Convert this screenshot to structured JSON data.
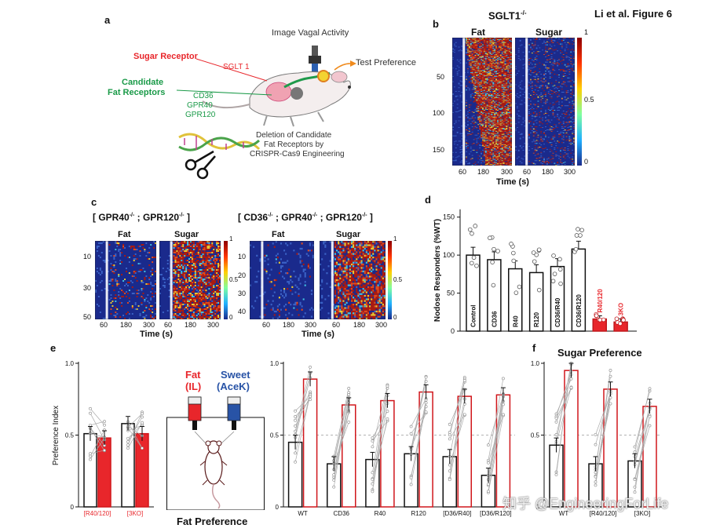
{
  "figure": {
    "title": "Li et al. Figure 6",
    "watermark": "知乎 @EngineeringForLife"
  },
  "panel_a": {
    "label": "a",
    "image_vagal": "Image Vagal Activity",
    "test_pref": "Test Preference",
    "sugar_receptor": "Sugar Receptor",
    "sglt1": "SGLT 1",
    "candidate": "Candidate",
    "fat_receptors": "Fat Receptors",
    "cd36": "CD36",
    "gpr40": "GPR40",
    "gpr120": "GPR120",
    "deletion_1": "Deletion of Candidate",
    "deletion_2": "Fat Receptors by",
    "deletion_3": "CRISPR-Cas9 Engineering"
  },
  "panel_b": {
    "label": "b",
    "title": "SGLT1",
    "title_sup": "-/-",
    "fat": "Fat",
    "sugar": "Sugar",
    "yticks": [
      "50",
      "100",
      "150"
    ],
    "xticks": [
      "60",
      "180",
      "300"
    ],
    "xlabel": "Time (s)",
    "cbar": [
      "1",
      "0.5",
      "0"
    ]
  },
  "panel_c": {
    "label": "c",
    "left_title": "[ GPR40",
    "left_mid": " ; GPR120",
    "left_end": " ]",
    "right_title": "[ CD36",
    "right_mid1": " ; GPR40",
    "right_mid2": " ; GPR120",
    "right_end": " ]",
    "sup": "-/-",
    "fat": "Fat",
    "sugar": "Sugar",
    "left_yticks": [
      "10",
      "30",
      "50"
    ],
    "right_yticks": [
      "10",
      "20",
      "30",
      "40"
    ],
    "xticks": [
      "60",
      "180",
      "300"
    ],
    "xlabel": "Time (s)",
    "cbar": [
      "1",
      "0.5",
      "0"
    ]
  },
  "panel_d": {
    "label": "d",
    "ylabel": "Nodose Responders (%WT)",
    "yticks": [
      "0",
      "50",
      "100",
      "150"
    ],
    "chart_data": {
      "type": "bar",
      "categories": [
        "Control",
        "CD36",
        "R40",
        "R120",
        "CD36/R40",
        "CD36/R120",
        "R40/120",
        "3KO"
      ],
      "values": [
        100,
        94,
        82,
        77,
        85,
        108,
        16,
        12
      ],
      "ylim": [
        0,
        160
      ],
      "colors": [
        "#ffffff",
        "#ffffff",
        "#ffffff",
        "#ffffff",
        "#ffffff",
        "#ffffff",
        "#e8262b",
        "#e8262b"
      ]
    }
  },
  "panel_e": {
    "label": "e",
    "ylabel": "Preference Index",
    "yticks": [
      "0",
      "0.5",
      "1.0"
    ],
    "left_categories": [
      "[R40/120]",
      "[3KO]"
    ],
    "fat": "Fat",
    "fat_sub": "(IL)",
    "sweet": "Sweet",
    "sweet_sub": "(AceK)",
    "caption": "Fat Preference",
    "right_yticks": [
      "0",
      "0.5",
      "1.0"
    ],
    "chart_data": [
      {
        "type": "bar",
        "categories": [
          "[R40/120]",
          "[3KO]"
        ],
        "series": [
          {
            "values": [
              0.51,
              0.58
            ]
          },
          {
            "values": [
              0.48,
              0.51
            ]
          }
        ],
        "ylim": [
          0,
          1
        ]
      },
      {
        "type": "bar",
        "categories": [
          "WT",
          "CD36",
          "R40",
          "R120",
          "[D36/R40]",
          "[D36/R120]"
        ],
        "series": [
          {
            "values": [
              0.45,
              0.3,
              0.33,
              0.37,
              0.35,
              0.22
            ]
          },
          {
            "values": [
              0.89,
              0.71,
              0.74,
              0.8,
              0.77,
              0.78
            ]
          }
        ],
        "ylim": [
          0,
          1
        ]
      }
    ]
  },
  "panel_f": {
    "label": "f",
    "title": "Sugar Preference",
    "yticks": [
      "0",
      "0.5",
      "1.0"
    ],
    "chart_data": {
      "type": "bar",
      "categories": [
        "WT",
        "[R40/120]",
        "[3KO]"
      ],
      "series": [
        {
          "values": [
            0.43,
            0.3,
            0.32
          ]
        },
        {
          "values": [
            0.95,
            0.82,
            0.7
          ]
        }
      ],
      "ylim": [
        0,
        1
      ]
    }
  },
  "colors": {
    "red": "#e8262b",
    "green": "#1a9a48",
    "blue": "#2853a6",
    "hm_blue": "#1a2a8c",
    "hm_red": "#a81a12"
  }
}
